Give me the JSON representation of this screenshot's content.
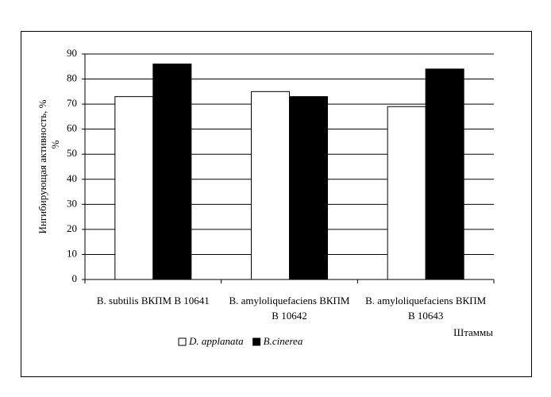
{
  "chart_data": {
    "type": "bar",
    "categories": [
      "B. subtilis ВКПМ В 10641",
      "B. amyloliquefaciens ВКПМ В 10642",
      "B. amyloliquefaciens ВКПМ В 10643"
    ],
    "series": [
      {
        "name": "D. applanata",
        "color": "#ffffff",
        "values": [
          73,
          75,
          69
        ]
      },
      {
        "name": "B.cinerea",
        "color": "#000000",
        "values": [
          86,
          73,
          84
        ]
      }
    ],
    "ylabel": [
      "Ингибирующая активность, %",
      "%"
    ],
    "xlabel": "Штаммы",
    "ylim": [
      0,
      90
    ],
    "yticks": [
      0,
      10,
      20,
      30,
      40,
      50,
      60,
      70,
      80,
      90
    ],
    "grid": true,
    "legend": "bottom"
  }
}
